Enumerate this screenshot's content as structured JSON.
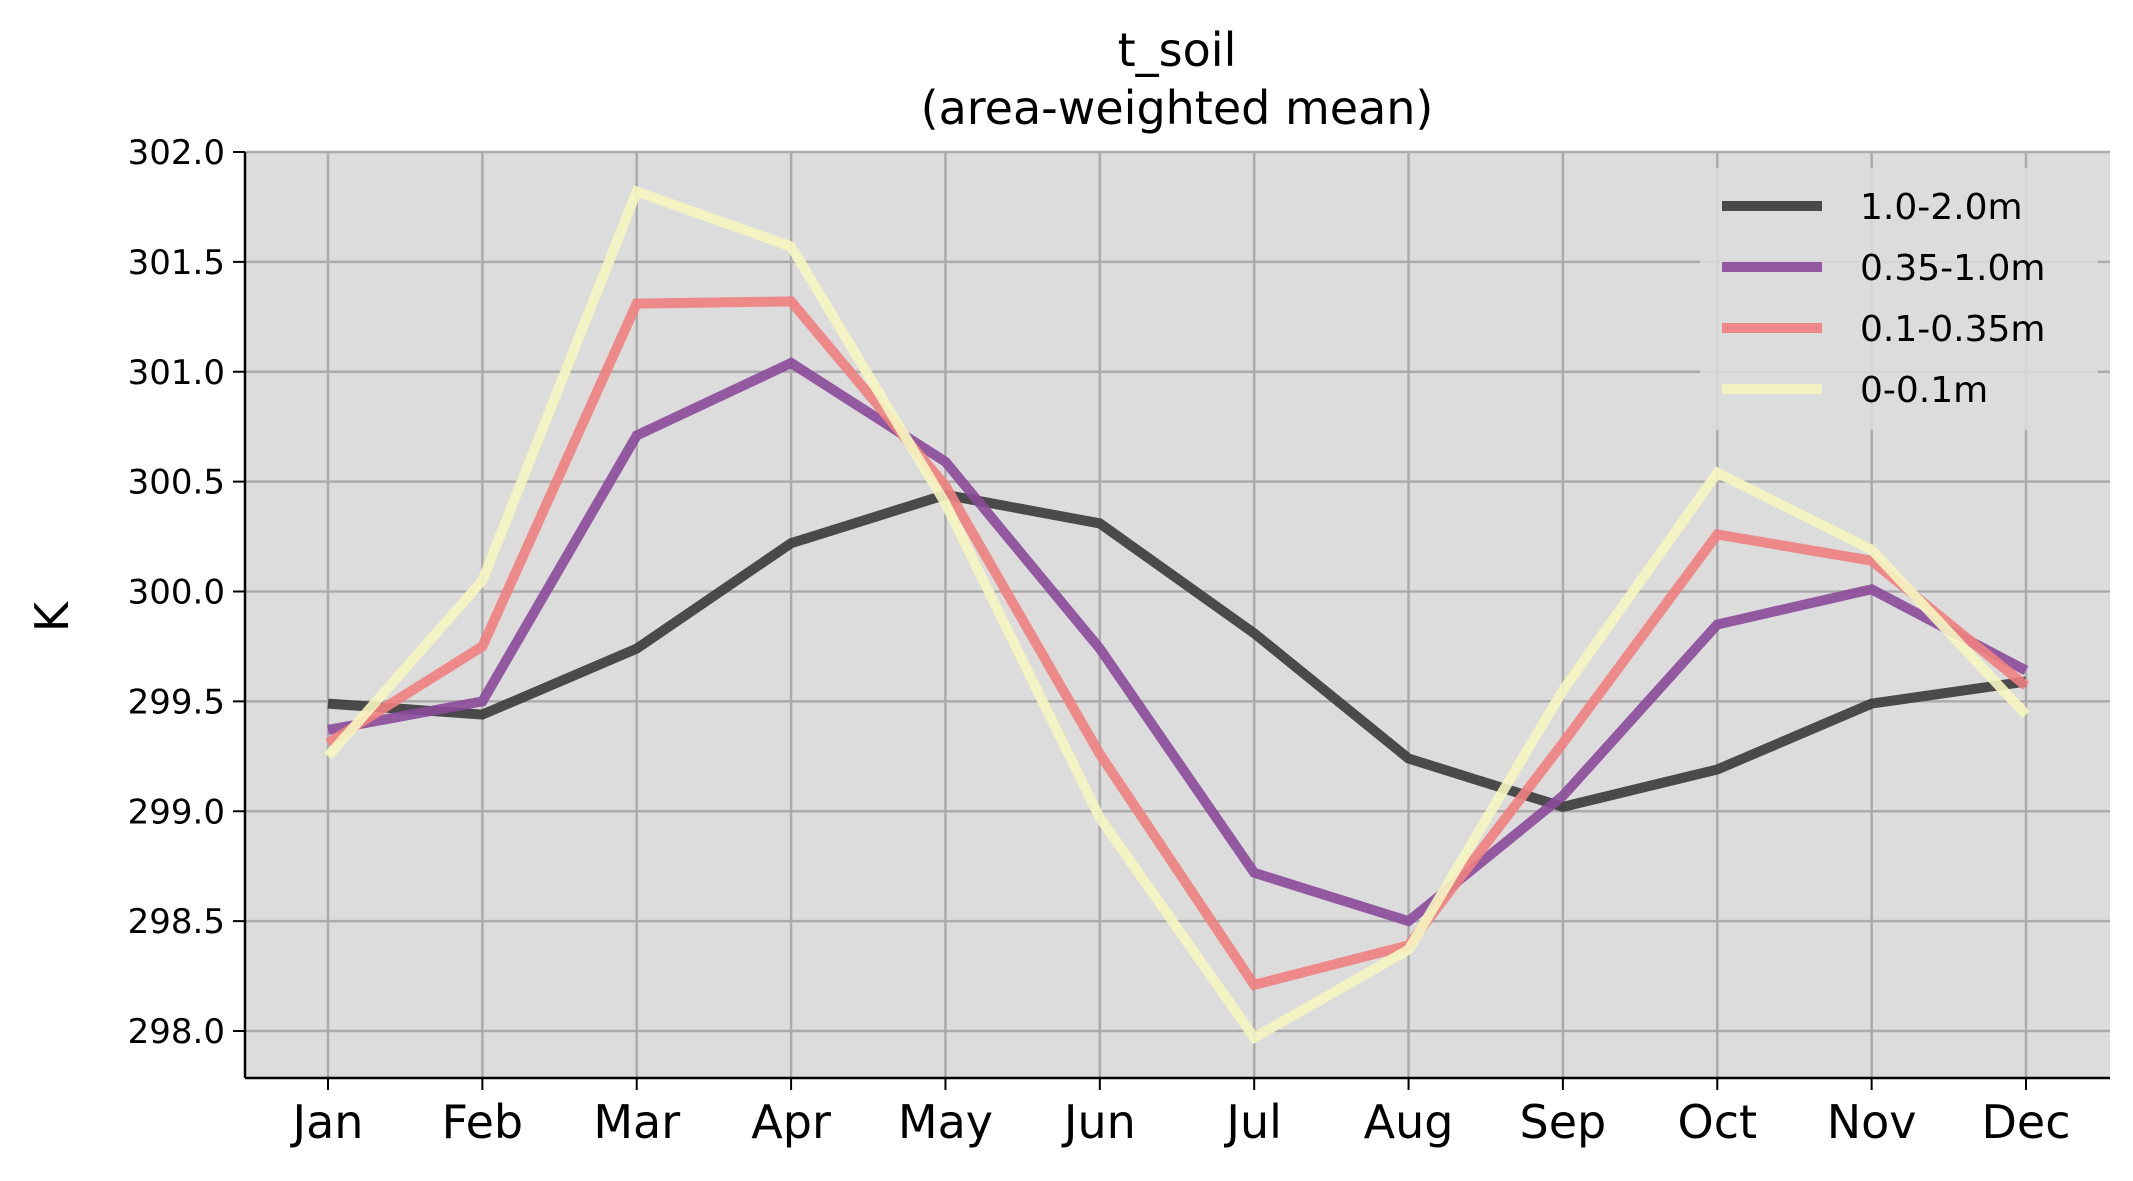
{
  "chart_data": {
    "type": "line",
    "title": "t_soil",
    "subtitle": "(area-weighted mean)",
    "xlabel": "",
    "ylabel": "K",
    "categories": [
      "Jan",
      "Feb",
      "Mar",
      "Apr",
      "May",
      "Jun",
      "Jul",
      "Aug",
      "Sep",
      "Oct",
      "Nov",
      "Dec"
    ],
    "ylim": [
      297.77,
      302.0
    ],
    "yticks": [
      "302.0",
      "301.5",
      "301.0",
      "300.5",
      "300.0",
      "299.5",
      "299.0",
      "298.5",
      "298.0"
    ],
    "grid": true,
    "legend_position": "top-right",
    "background": "#dcdcdc",
    "series": [
      {
        "name": "1.0-2.0m",
        "color": "#3a3a3a",
        "values": [
          299.49,
          299.44,
          299.74,
          300.22,
          300.44,
          300.31,
          299.81,
          299.24,
          299.02,
          299.19,
          299.49,
          299.59
        ]
      },
      {
        "name": "0.35-1.0m",
        "color": "#8a4a9a",
        "values": [
          299.37,
          299.5,
          300.71,
          301.04,
          300.59,
          299.74,
          298.72,
          298.5,
          299.07,
          299.85,
          300.01,
          299.64
        ]
      },
      {
        "name": "0.1-0.35m",
        "color": "#f08080",
        "values": [
          299.31,
          299.75,
          301.31,
          301.32,
          300.48,
          299.26,
          298.21,
          298.39,
          299.31,
          300.26,
          300.14,
          299.57
        ]
      },
      {
        "name": "0-0.1m",
        "color": "#f5f5c0",
        "values": [
          299.25,
          300.05,
          301.82,
          301.57,
          300.4,
          298.97,
          297.97,
          298.37,
          299.55,
          300.54,
          300.19,
          299.44
        ]
      }
    ]
  }
}
